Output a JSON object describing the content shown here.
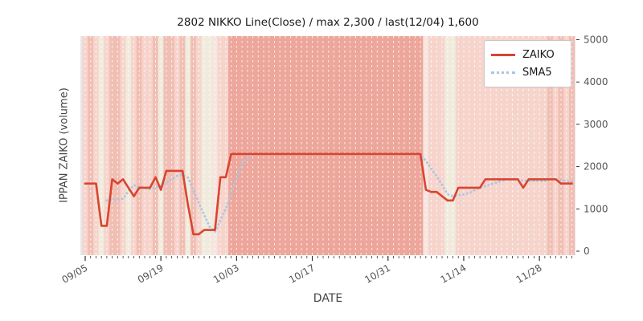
{
  "title": "2802 NIKKO Line(Close) / max 2,300 / last(12/04) 1,600",
  "axes": {
    "x_label": "DATE",
    "y_label": "IPPAN ZAIKO (volume)",
    "x_major_ticks": [
      "09/05",
      "09/19",
      "10/03",
      "10/17",
      "10/31",
      "11/14",
      "11/28"
    ],
    "y_ticks": [
      "0",
      "1000",
      "2000",
      "3000",
      "4000",
      "5000"
    ],
    "y_tick_side": "right"
  },
  "legend": {
    "position": "upper right",
    "items": [
      {
        "label": "ZAIKO",
        "color": "#d8452f",
        "style": "solid"
      },
      {
        "label": "SMA5",
        "color": "#a9c7e3",
        "style": "dotted"
      }
    ]
  },
  "colors": {
    "figure_bg": "#ffffff",
    "plot_bg": "#e6e6ea",
    "grid": "#ffffff",
    "tick": "#333333",
    "band_palette": [
      "#f0ebdd",
      "#f7e4de",
      "#f6d4cc",
      "#f1beb4",
      "#eda69b"
    ],
    "zaiko_line": "#d8452f",
    "sma5_line": "#a9c7e3"
  },
  "chart_data": {
    "type": "line",
    "title": "2802 NIKKO Line(Close) / max 2,300 / last(12/04) 1,600",
    "xlabel": "DATE",
    "ylabel": "IPPAN ZAIKO (volume)",
    "ylim": [
      0,
      5000
    ],
    "y_ticks": [
      0,
      1000,
      2000,
      3000,
      4000,
      5000
    ],
    "grid": "vertical-daily-dashed-white",
    "legend_position": "upper right",
    "max_value": 2300,
    "last_value": 1600,
    "last_date": "12/04",
    "x": [
      "09/05",
      "09/06",
      "09/07",
      "09/08",
      "09/09",
      "09/10",
      "09/11",
      "09/12",
      "09/13",
      "09/14",
      "09/15",
      "09/16",
      "09/17",
      "09/18",
      "09/19",
      "09/20",
      "09/21",
      "09/22",
      "09/23",
      "09/24",
      "09/25",
      "09/26",
      "09/27",
      "09/28",
      "09/29",
      "09/30",
      "10/01",
      "10/02",
      "10/03",
      "10/04",
      "10/05",
      "10/06",
      "10/07",
      "10/08",
      "10/09",
      "10/10",
      "10/11",
      "10/12",
      "10/13",
      "10/14",
      "10/15",
      "10/16",
      "10/17",
      "10/18",
      "10/19",
      "10/20",
      "10/21",
      "10/22",
      "10/23",
      "10/24",
      "10/25",
      "10/26",
      "10/27",
      "10/28",
      "10/29",
      "10/30",
      "10/31",
      "11/01",
      "11/02",
      "11/03",
      "11/04",
      "11/05",
      "11/06",
      "11/07",
      "11/08",
      "11/09",
      "11/10",
      "11/11",
      "11/12",
      "11/13",
      "11/14",
      "11/15",
      "11/16",
      "11/17",
      "11/18",
      "11/19",
      "11/20",
      "11/21",
      "11/22",
      "11/23",
      "11/24",
      "11/25",
      "11/26",
      "11/27",
      "11/28",
      "11/29",
      "11/30",
      "12/01",
      "12/02",
      "12/03",
      "12/04"
    ],
    "series": [
      {
        "name": "ZAIKO",
        "color": "#d8452f",
        "line_style": "solid",
        "values": [
          1600,
          1600,
          1600,
          600,
          600,
          1700,
          1600,
          1700,
          1500,
          1300,
          1500,
          1500,
          1500,
          1750,
          1450,
          1900,
          1900,
          1900,
          1900,
          1100,
          400,
          400,
          500,
          500,
          500,
          1750,
          1750,
          2300,
          2300,
          2300,
          2300,
          2300,
          2300,
          2300,
          2300,
          2300,
          2300,
          2300,
          2300,
          2300,
          2300,
          2300,
          2300,
          2300,
          2300,
          2300,
          2300,
          2300,
          2300,
          2300,
          2300,
          2300,
          2300,
          2300,
          2300,
          2300,
          2300,
          2300,
          2300,
          2300,
          2300,
          2300,
          2300,
          1450,
          1400,
          1400,
          1300,
          1200,
          1200,
          1500,
          1500,
          1500,
          1500,
          1500,
          1700,
          1700,
          1700,
          1700,
          1700,
          1700,
          1700,
          1500,
          1700,
          1700,
          1700,
          1700,
          1700,
          1700,
          1600,
          1600,
          1600
        ]
      },
      {
        "name": "SMA5",
        "color": "#a9c7e3",
        "line_style": "dotted",
        "derivation": "5-day simple moving average of ZAIKO",
        "values": [
          null,
          null,
          null,
          null,
          1200,
          1220,
          1220,
          1240,
          1420,
          1560,
          1520,
          1500,
          1460,
          1510,
          1540,
          1620,
          1700,
          1780,
          1810,
          1740,
          1440,
          1140,
          860,
          580,
          460,
          730,
          1000,
          1360,
          1720,
          2080,
          2190,
          2300,
          2300,
          2300,
          2300,
          2300,
          2300,
          2300,
          2300,
          2300,
          2300,
          2300,
          2300,
          2300,
          2300,
          2300,
          2300,
          2300,
          2300,
          2300,
          2300,
          2300,
          2300,
          2300,
          2300,
          2300,
          2300,
          2300,
          2300,
          2300,
          2300,
          2300,
          2300,
          2130,
          1950,
          1770,
          1570,
          1350,
          1300,
          1320,
          1340,
          1380,
          1440,
          1500,
          1540,
          1580,
          1620,
          1660,
          1700,
          1700,
          1700,
          1660,
          1660,
          1660,
          1660,
          1660,
          1700,
          1700,
          1680,
          1660,
          1640
        ]
      }
    ],
    "background_day_levels": [
      2,
      3,
      2,
      0,
      2,
      3,
      3,
      2,
      0,
      2,
      3,
      2,
      2,
      3,
      0,
      3,
      3,
      2,
      3,
      0,
      3,
      2,
      0,
      0,
      1,
      2,
      2,
      4,
      4,
      4,
      4,
      4,
      4,
      4,
      4,
      4,
      4,
      4,
      4,
      4,
      4,
      4,
      4,
      4,
      4,
      4,
      4,
      4,
      4,
      4,
      4,
      4,
      4,
      4,
      4,
      4,
      4,
      4,
      4,
      4,
      4,
      4,
      4,
      1,
      2,
      2,
      2,
      0,
      0,
      2,
      2,
      2,
      2,
      2,
      2,
      2,
      2,
      2,
      2,
      2,
      2,
      2,
      2,
      2,
      2,
      2,
      3,
      2,
      3,
      2,
      3
    ]
  }
}
